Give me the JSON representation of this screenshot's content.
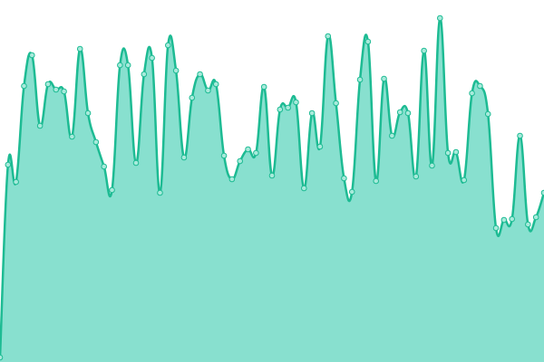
{
  "chart_data": {
    "type": "area",
    "values": [
      5,
      218,
      199,
      305,
      339,
      261,
      307,
      301,
      299,
      249,
      346,
      275,
      243,
      216,
      190,
      328,
      328,
      220,
      318,
      336,
      187,
      350,
      322,
      226,
      292,
      318,
      300,
      307,
      228,
      202,
      222,
      235,
      231,
      304,
      206,
      279,
      281,
      287,
      192,
      275,
      238,
      360,
      286,
      203,
      188,
      312,
      354,
      200,
      313,
      250,
      276,
      275,
      205,
      344,
      217,
      380,
      231,
      232,
      201,
      297,
      305,
      274,
      148,
      157,
      158,
      250,
      152,
      160,
      187
    ],
    "ylim": [
      0,
      400
    ],
    "line_color": "#1dbb93",
    "fill_color": "#88e0cf",
    "marker_fill": "#a8eadb"
  }
}
